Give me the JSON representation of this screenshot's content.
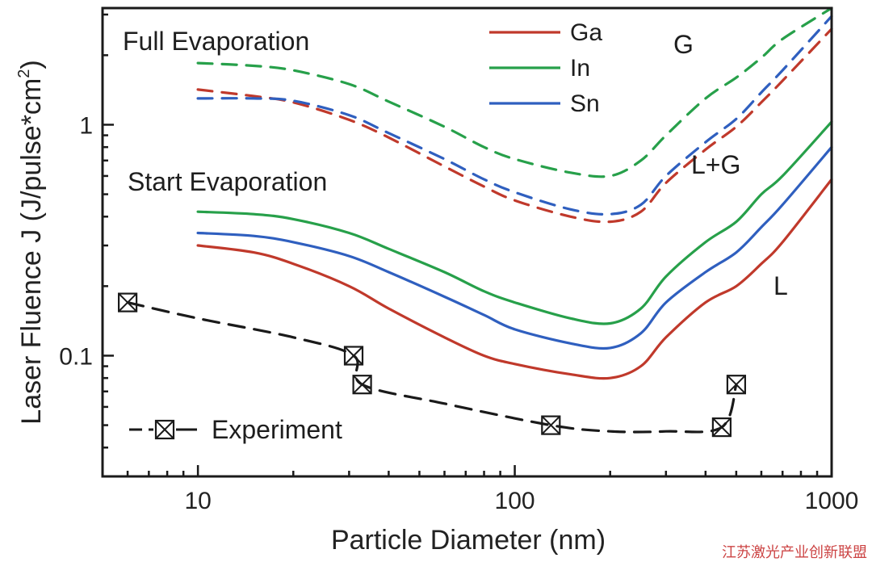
{
  "chart_data": {
    "type": "line",
    "xlabel": "Particle Diameter (nm)",
    "ylabel_main": "Laser Fluence J (J/pulse*cm",
    "ylabel_sup": "2",
    "ylabel_close": ")",
    "xscale": "log",
    "yscale": "log",
    "xlim": [
      5,
      1000
    ],
    "ylim": [
      0.03,
      3.2
    ],
    "x_ticks": [
      {
        "value": 10,
        "label": "10"
      },
      {
        "value": 100,
        "label": "100"
      },
      {
        "value": 1000,
        "label": "1000"
      }
    ],
    "y_ticks": [
      {
        "value": 0.1,
        "label": "0.1"
      },
      {
        "value": 1,
        "label": "1"
      }
    ],
    "annotations": {
      "full_evaporation": "Full Evaporation",
      "start_evaporation": "Start Evaporation",
      "region_g": "G",
      "region_lg": "L+G",
      "region_l": "L"
    },
    "legend": {
      "placement": "top-right",
      "entries": [
        {
          "name": "Ga",
          "color": "#c0392b"
        },
        {
          "name": "In",
          "color": "#27a04a"
        },
        {
          "name": "Sn",
          "color": "#2f5fbf"
        }
      ],
      "experiment_label": "Experiment"
    },
    "series": [
      {
        "name": "Ga",
        "kind": "start",
        "color": "#c0392b",
        "x": [
          10,
          15,
          20,
          30,
          40,
          60,
          80,
          100,
          150,
          200,
          250,
          300,
          400,
          500,
          600,
          700,
          1000
        ],
        "y": [
          0.3,
          0.28,
          0.25,
          0.2,
          0.16,
          0.12,
          0.1,
          0.092,
          0.083,
          0.08,
          0.09,
          0.12,
          0.17,
          0.2,
          0.25,
          0.31,
          0.58
        ]
      },
      {
        "name": "Sn",
        "kind": "start",
        "color": "#2f5fbf",
        "x": [
          10,
          15,
          20,
          30,
          40,
          60,
          80,
          100,
          150,
          200,
          250,
          300,
          400,
          500,
          600,
          700,
          1000
        ],
        "y": [
          0.34,
          0.33,
          0.31,
          0.27,
          0.23,
          0.18,
          0.15,
          0.13,
          0.113,
          0.108,
          0.125,
          0.17,
          0.23,
          0.28,
          0.36,
          0.45,
          0.8
        ]
      },
      {
        "name": "In",
        "kind": "start",
        "color": "#27a04a",
        "x": [
          10,
          15,
          20,
          30,
          40,
          60,
          80,
          100,
          150,
          200,
          250,
          300,
          400,
          500,
          600,
          700,
          1000
        ],
        "y": [
          0.42,
          0.41,
          0.39,
          0.34,
          0.29,
          0.23,
          0.19,
          0.17,
          0.145,
          0.138,
          0.16,
          0.22,
          0.31,
          0.38,
          0.5,
          0.6,
          1.03
        ]
      },
      {
        "name": "Ga",
        "kind": "full",
        "color": "#c0392b",
        "x": [
          10,
          15,
          20,
          30,
          40,
          60,
          80,
          100,
          150,
          200,
          250,
          300,
          400,
          500,
          600,
          700,
          1000
        ],
        "y": [
          1.42,
          1.33,
          1.25,
          1.05,
          0.88,
          0.66,
          0.54,
          0.47,
          0.4,
          0.38,
          0.42,
          0.56,
          0.78,
          0.98,
          1.25,
          1.55,
          2.6
        ]
      },
      {
        "name": "Sn",
        "kind": "full",
        "color": "#2f5fbf",
        "x": [
          10,
          15,
          20,
          30,
          40,
          60,
          80,
          100,
          150,
          200,
          250,
          300,
          400,
          500,
          600,
          700,
          1000
        ],
        "y": [
          1.3,
          1.3,
          1.27,
          1.1,
          0.92,
          0.71,
          0.58,
          0.51,
          0.43,
          0.41,
          0.45,
          0.6,
          0.84,
          1.06,
          1.38,
          1.72,
          2.95
        ]
      },
      {
        "name": "In",
        "kind": "full",
        "color": "#27a04a",
        "x": [
          10,
          15,
          20,
          30,
          40,
          60,
          80,
          100,
          150,
          200,
          250,
          300,
          400,
          500,
          600,
          700,
          1000
        ],
        "y": [
          1.85,
          1.8,
          1.72,
          1.5,
          1.26,
          0.98,
          0.8,
          0.71,
          0.62,
          0.6,
          0.7,
          0.9,
          1.3,
          1.6,
          1.95,
          2.35,
          3.2
        ]
      },
      {
        "name": "Experiment",
        "kind": "experiment",
        "color": "#1a1a1a",
        "x": [
          6,
          10,
          20,
          31,
          33,
          60,
          130,
          200,
          300,
          450,
          500
        ],
        "y": [
          0.17,
          0.145,
          0.12,
          0.1,
          0.075,
          0.062,
          0.05,
          0.047,
          0.047,
          0.049,
          0.075
        ],
        "markers": [
          0,
          3,
          4,
          6,
          9,
          10
        ]
      }
    ]
  },
  "watermark": "江苏激光产业创新联盟"
}
